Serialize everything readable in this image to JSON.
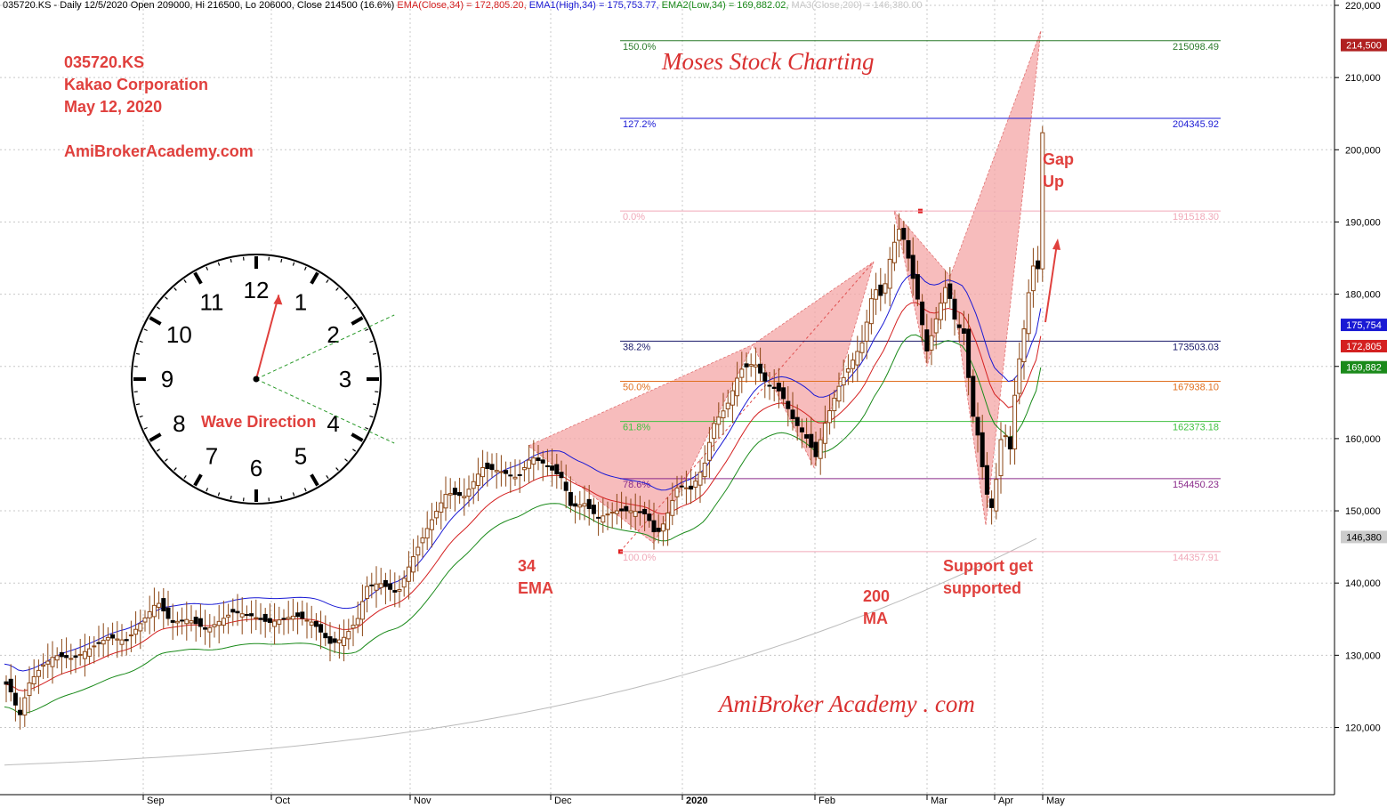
{
  "header": {
    "symbol": "035720.KS",
    "period": "Daily 12/5/2020",
    "ohlc": "Open 209000, Hi 216500, Lo 206000, Close 214500 (16.6%)",
    "ema": "EMA(Close,34) = 172,805.20,",
    "ema_high": "EMA1(High,34) = 175,753.77,",
    "ema_low": "EMA2(Low,34) = 169,882.02,",
    "ma": "MA3(Close,200) = 146,380.00"
  },
  "notes": {
    "ticker": "035720.KS",
    "company": "Kakao Corporation",
    "date": "May 12, 2020",
    "site": "AmiBrokerAcademy.com",
    "wave_direction": "Wave Direction",
    "ema_note_1": "34",
    "ema_note_2": "EMA",
    "ma_note_1": "200",
    "ma_note_2": "MA",
    "support_1": "Support get",
    "support_2": "supported",
    "gap_1": "Gap",
    "gap_2": "Up",
    "watermark_top": "Moses Stock Charting",
    "watermark_bottom": "AmiBroker Academy . com"
  },
  "colors": {
    "up_candle": "#ffffff",
    "down_candle": "#000000",
    "wick": "#8b4513",
    "ema_close": "#d42020",
    "ema_high": "#1a1ad4",
    "ema_low": "#1a8a1a",
    "ma200": "#bbbbbb",
    "pattern_fill": "#f4a6a6",
    "annotation": "#e0403d"
  },
  "chart_data": {
    "type": "candlestick",
    "y_axis": {
      "ticks": [
        "120,000",
        "130,000",
        "140,000",
        "150,000",
        "160,000",
        "170,000",
        "180,000",
        "190,000",
        "200,000",
        "210,000",
        "220,000"
      ],
      "range": [
        110000,
        221000
      ]
    },
    "x_axis": {
      "months": [
        "Sep",
        "Oct",
        "Nov",
        "Dec",
        "2020",
        "Feb",
        "Mar",
        "Apr",
        "May"
      ]
    },
    "last_values": [
      {
        "label": "214,500",
        "value": 214500,
        "color": "#b02020"
      },
      {
        "label": "175,754",
        "value": 175754,
        "color": "#1a1ad4"
      },
      {
        "label": "172,805",
        "value": 172805,
        "color": "#d42020"
      },
      {
        "label": "169,882",
        "value": 169882,
        "color": "#1a8a1a"
      },
      {
        "label": "146,380",
        "value": 146380,
        "color": "#cccccc"
      }
    ],
    "fib_levels": [
      {
        "pct": "150.0%",
        "value_label": "215098.49",
        "value": 215098.49,
        "color": "#2a7a2a"
      },
      {
        "pct": "127.2%",
        "value_label": "204345.92",
        "value": 204345.92,
        "color": "#1a1ad4"
      },
      {
        "pct": "0.0%",
        "value_label": "191518.30",
        "value": 191518.3,
        "color": "#f0a8b8"
      },
      {
        "pct": "38.2%",
        "value_label": "173503.03",
        "value": 173503.03,
        "color": "#1a1a6a"
      },
      {
        "pct": "50.0%",
        "value_label": "167938.10",
        "value": 167938.1,
        "color": "#e07020"
      },
      {
        "pct": "61.8%",
        "value_label": "162373.18",
        "value": 162373.18,
        "color": "#40c040"
      },
      {
        "pct": "78.6%",
        "value_label": "154450.23",
        "value": 154450.23,
        "color": "#8a2a8a"
      },
      {
        "pct": "100.0%",
        "value_label": "144357.91",
        "value": 144357.91,
        "color": "#f0a8b8"
      }
    ],
    "clock": {
      "numbers": [
        "12",
        "1",
        "2",
        "3",
        "4",
        "5",
        "6",
        "7",
        "8",
        "9",
        "10",
        "11"
      ],
      "hand_hour": 12.5,
      "rays_to": [
        2,
        4
      ]
    }
  }
}
